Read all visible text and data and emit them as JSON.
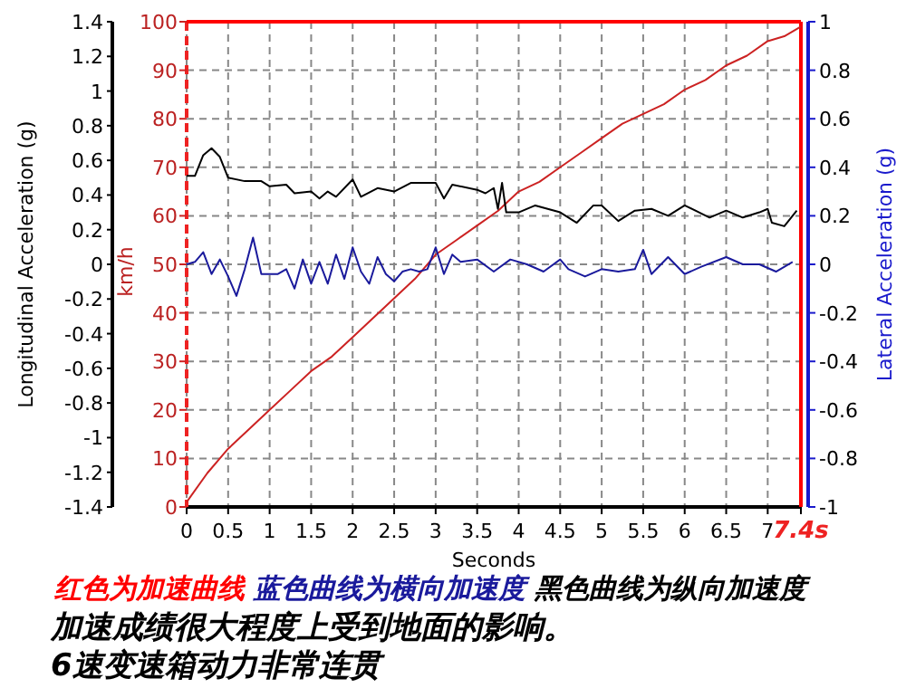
{
  "chart_data": {
    "type": "line",
    "xlabel": "Seconds",
    "ylabel": "km/h",
    "y2label": "Lateral Acceleration (g)",
    "y3label": "Longitudinal Acceleration (g)",
    "xlim": [
      0,
      7.4
    ],
    "xticks": [
      0,
      0.5,
      1,
      1.5,
      2,
      2.5,
      3,
      3.5,
      4,
      4.5,
      5,
      5.5,
      6,
      6.5,
      7,
      {
        "value": 7.4,
        "label": "7.4s"
      }
    ],
    "ylim": [
      0,
      100
    ],
    "yticks": [
      0,
      10,
      20,
      30,
      40,
      50,
      60,
      70,
      80,
      90,
      100
    ],
    "y2lim": [
      -1,
      1
    ],
    "y2ticks": [
      -1,
      -0.8,
      -0.6,
      -0.4,
      -0.2,
      0,
      0.2,
      0.4,
      0.6,
      0.8,
      1
    ],
    "y3lim": [
      -1.4,
      1.4
    ],
    "y3ticks": [
      -1.4,
      -1.2,
      -1,
      -0.8,
      -0.6,
      -0.4,
      -0.2,
      0,
      0.2,
      0.4,
      0.6,
      0.8,
      1,
      1.2,
      1.4
    ],
    "grid": true,
    "line_style": "solid",
    "ref_lines": [
      {
        "axis": "y",
        "value": 100,
        "color": "#ff0000"
      },
      {
        "axis": "x",
        "value": 7.4,
        "color": "#ff0000"
      }
    ],
    "series": [
      {
        "color": "#cc2222",
        "axis": "y",
        "x": [
          0,
          0.25,
          0.5,
          0.75,
          1,
          1.25,
          1.5,
          1.75,
          2,
          2.25,
          2.5,
          2.75,
          3,
          3.25,
          3.5,
          3.75,
          4,
          4.25,
          4.5,
          4.75,
          5,
          5.25,
          5.5,
          5.75,
          6,
          6.25,
          6.5,
          6.75,
          7,
          7.2,
          7.4
        ],
        "values": [
          1,
          7,
          12,
          16,
          20,
          24,
          28,
          31,
          35,
          39,
          43,
          47,
          52,
          55,
          58,
          61,
          65,
          67,
          70,
          73,
          76,
          79,
          81,
          83,
          86,
          88,
          91,
          93,
          96,
          97,
          99
        ]
      },
      {
        "color": "#1a1a9c",
        "axis": "y2",
        "x": [
          0,
          0.1,
          0.2,
          0.3,
          0.4,
          0.5,
          0.6,
          0.7,
          0.8,
          0.9,
          1,
          1.1,
          1.2,
          1.3,
          1.4,
          1.5,
          1.6,
          1.7,
          1.8,
          1.9,
          2,
          2.1,
          2.2,
          2.3,
          2.4,
          2.5,
          2.6,
          2.7,
          2.8,
          2.9,
          3,
          3.1,
          3.2,
          3.3,
          3.5,
          3.7,
          3.9,
          4.1,
          4.3,
          4.5,
          4.6,
          4.8,
          5,
          5.2,
          5.4,
          5.5,
          5.6,
          5.8,
          6,
          6.2,
          6.5,
          6.7,
          6.9,
          7.1,
          7.3
        ],
        "values": [
          0,
          0.01,
          0.05,
          -0.04,
          0.02,
          -0.05,
          -0.13,
          -0.02,
          0.11,
          -0.04,
          -0.04,
          -0.04,
          -0.02,
          -0.1,
          0.02,
          -0.08,
          0.01,
          -0.08,
          0.04,
          -0.06,
          0.07,
          -0.03,
          -0.08,
          0.03,
          -0.04,
          -0.07,
          -0.03,
          -0.02,
          -0.03,
          -0.02,
          0.07,
          -0.04,
          0.04,
          0.01,
          0.02,
          -0.03,
          0.02,
          0,
          -0.03,
          0.02,
          -0.02,
          -0.05,
          -0.02,
          -0.03,
          -0.02,
          0.06,
          -0.04,
          0.03,
          -0.04,
          -0.01,
          0.03,
          0,
          0,
          -0.03,
          0.01
        ]
      },
      {
        "color": "#000000",
        "axis": "y3",
        "x": [
          0,
          0.1,
          0.2,
          0.3,
          0.4,
          0.5,
          0.7,
          0.9,
          1,
          1.2,
          1.3,
          1.5,
          1.6,
          1.7,
          1.8,
          2,
          2.1,
          2.3,
          2.5,
          2.7,
          3,
          3.1,
          3.2,
          3.5,
          3.6,
          3.7,
          3.75,
          3.8,
          3.85,
          4,
          4.2,
          4.5,
          4.7,
          4.9,
          5,
          5.2,
          5.4,
          5.6,
          5.8,
          6,
          6.3,
          6.5,
          6.7,
          6.9,
          7,
          7.05,
          7.2,
          7.35
        ],
        "values": [
          0.51,
          0.51,
          0.63,
          0.67,
          0.62,
          0.5,
          0.48,
          0.48,
          0.45,
          0.46,
          0.41,
          0.42,
          0.38,
          0.42,
          0.39,
          0.49,
          0.39,
          0.44,
          0.42,
          0.47,
          0.47,
          0.38,
          0.46,
          0.43,
          0.41,
          0.44,
          0.32,
          0.47,
          0.3,
          0.3,
          0.34,
          0.3,
          0.24,
          0.34,
          0.34,
          0.25,
          0.31,
          0.32,
          0.28,
          0.34,
          0.27,
          0.31,
          0.27,
          0.3,
          0.32,
          0.24,
          0.22,
          0.31
        ]
      }
    ],
    "annotations": [
      "红色为加速曲线",
      "蓝色曲线为横向加速度",
      "黑色曲线为纵向加速度",
      "加速成绩很大程度上受到地面的影响。",
      "6速变速箱动力非常连贯"
    ]
  }
}
